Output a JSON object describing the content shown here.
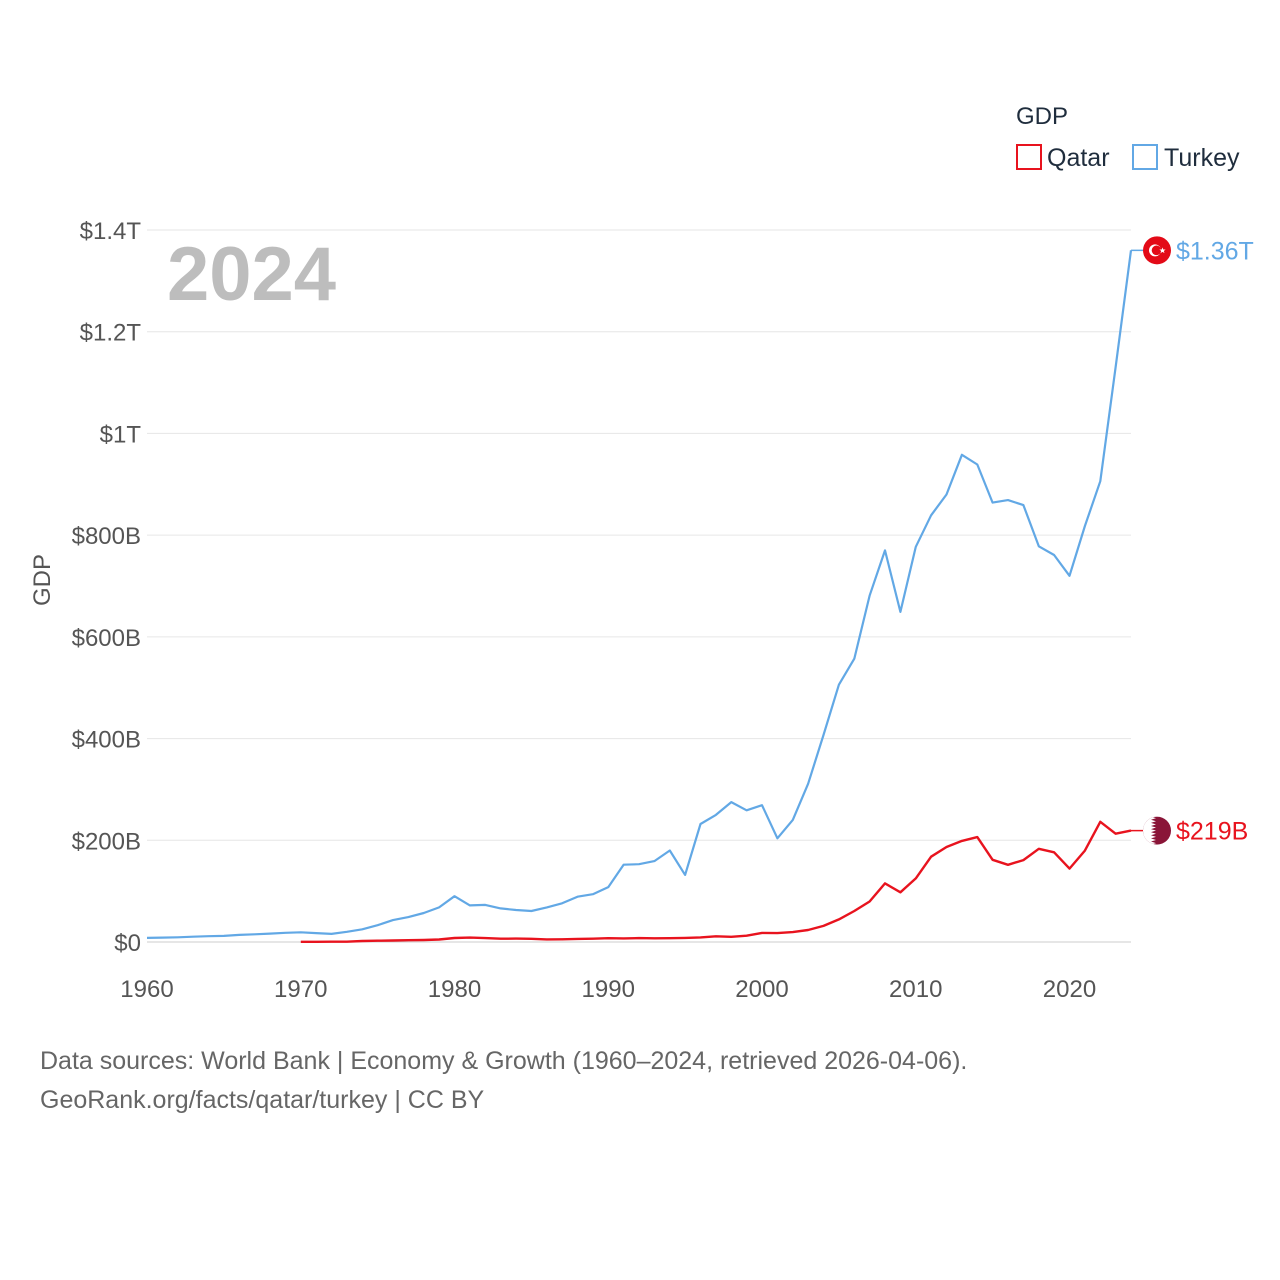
{
  "chart_data": {
    "type": "line",
    "year_label": "2024",
    "ylabel": "GDP",
    "xlabel": "",
    "xlim": [
      1960,
      2024
    ],
    "ylim": [
      0,
      1400
    ],
    "y_unit": "billion USD",
    "x_ticks": [
      1960,
      1970,
      1980,
      1990,
      2000,
      2010,
      2020
    ],
    "x_tick_labels": [
      "1960",
      "1970",
      "1980",
      "1990",
      "2000",
      "2010",
      "2020"
    ],
    "y_ticks": [
      0,
      200,
      400,
      600,
      800,
      1000,
      1200,
      1400
    ],
    "y_tick_labels": [
      "$0",
      "$200B",
      "$400B",
      "$600B",
      "$800B",
      "$1T",
      "$1.2T",
      "$1.4T"
    ],
    "legend": {
      "title": "GDP",
      "position": "top-right"
    },
    "series": [
      {
        "name": "Qatar",
        "color": "#e8131e",
        "end_label": "$219B",
        "flag": "qatar",
        "x": [
          1970,
          1971,
          1972,
          1973,
          1974,
          1975,
          1976,
          1977,
          1978,
          1979,
          1980,
          1981,
          1982,
          1983,
          1984,
          1985,
          1986,
          1987,
          1988,
          1989,
          1990,
          1991,
          1992,
          1993,
          1994,
          1995,
          1996,
          1997,
          1998,
          1999,
          2000,
          2001,
          2002,
          2003,
          2004,
          2005,
          2006,
          2007,
          2008,
          2009,
          2010,
          2011,
          2012,
          2013,
          2014,
          2015,
          2016,
          2017,
          2018,
          2019,
          2020,
          2021,
          2022,
          2023,
          2024
        ],
        "values": [
          0.3,
          0.4,
          0.5,
          0.6,
          2,
          2.5,
          3,
          3.5,
          4,
          5,
          7.8,
          8.7,
          7.7,
          6.5,
          6.7,
          6.2,
          5.1,
          5.4,
          6,
          6.5,
          7.4,
          7,
          7.6,
          7.2,
          7.4,
          8.1,
          9,
          11.3,
          10.3,
          12.4,
          17.8,
          17.5,
          19.4,
          23.5,
          31.7,
          44.5,
          60.9,
          79.7,
          115.3,
          97.8,
          125.1,
          167.8,
          186.8,
          198.7,
          206.2,
          161.7,
          151.7,
          161.1,
          183.3,
          176.4,
          144.4,
          179.7,
          236.3,
          213,
          219
        ]
      },
      {
        "name": "Turkey",
        "color": "#62a8e5",
        "end_label": "$1.36T",
        "flag": "turkey",
        "x": [
          1960,
          1961,
          1962,
          1963,
          1964,
          1965,
          1966,
          1967,
          1968,
          1969,
          1970,
          1971,
          1972,
          1973,
          1974,
          1975,
          1976,
          1977,
          1978,
          1979,
          1980,
          1981,
          1982,
          1983,
          1984,
          1985,
          1986,
          1987,
          1988,
          1989,
          1990,
          1991,
          1992,
          1993,
          1994,
          1995,
          1996,
          1997,
          1998,
          1999,
          2000,
          2001,
          2002,
          2003,
          2004,
          2005,
          2006,
          2007,
          2008,
          2009,
          2010,
          2011,
          2012,
          2013,
          2014,
          2015,
          2016,
          2017,
          2018,
          2019,
          2020,
          2021,
          2022,
          2023,
          2024
        ],
        "values": [
          8,
          8.6,
          9.3,
          10.5,
          11.5,
          12,
          14,
          15.2,
          16.5,
          18,
          19,
          17.5,
          16,
          20,
          25,
          33,
          43,
          49,
          57,
          68,
          90,
          72,
          73,
          66,
          63,
          61,
          68,
          76,
          89,
          94,
          108,
          152,
          153,
          159,
          180,
          132,
          232,
          250,
          275,
          259,
          269,
          204,
          240,
          311,
          407,
          506,
          557,
          681,
          770,
          649,
          777,
          839,
          880,
          958,
          939,
          864,
          869,
          859,
          778,
          761,
          720,
          818,
          906,
          1130,
          1360
        ]
      }
    ]
  },
  "source_text": "Data sources: World Bank | Economy & Growth (1960–2024, retrieved 2026-04-06).",
  "credit_text": "GeoRank.org/facts/qatar/turkey | CC BY"
}
